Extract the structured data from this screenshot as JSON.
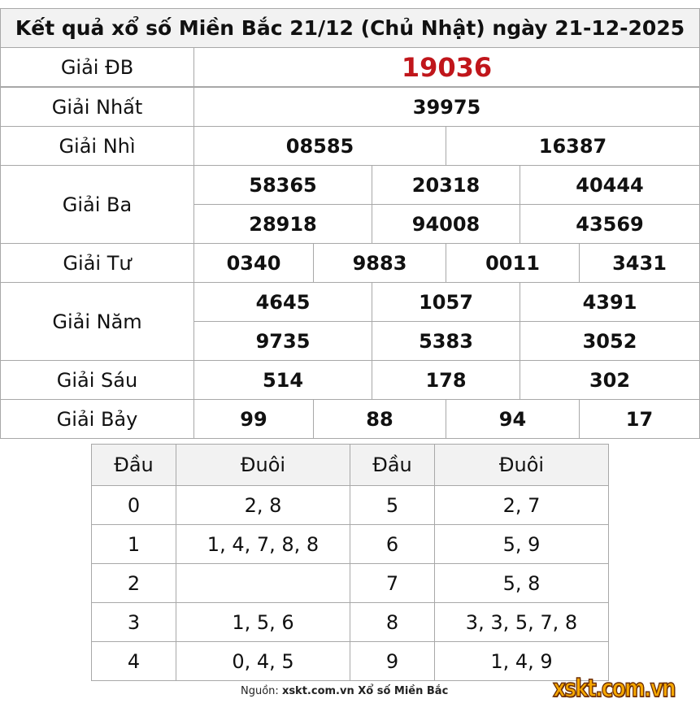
{
  "title": "Kết quả xổ số Miền Bắc 21/12 (Chủ Nhật) ngày 21-12-2025",
  "prizes": {
    "db": {
      "label": "Giải ĐB",
      "numbers": [
        "19036"
      ]
    },
    "nhat": {
      "label": "Giải Nhất",
      "numbers": [
        "39975"
      ]
    },
    "nhi": {
      "label": "Giải Nhì",
      "numbers": [
        "08585",
        "16387"
      ]
    },
    "ba": {
      "label": "Giải Ba",
      "numbers": [
        "58365",
        "20318",
        "40444",
        "28918",
        "94008",
        "43569"
      ]
    },
    "tu": {
      "label": "Giải Tư",
      "numbers": [
        "0340",
        "9883",
        "0011",
        "3431"
      ]
    },
    "nam": {
      "label": "Giải Năm",
      "numbers": [
        "4645",
        "1057",
        "4391",
        "9735",
        "5383",
        "3052"
      ]
    },
    "sau": {
      "label": "Giải Sáu",
      "numbers": [
        "514",
        "178",
        "302"
      ]
    },
    "bay": {
      "label": "Giải Bảy",
      "numbers": [
        "99",
        "88",
        "94",
        "17"
      ]
    }
  },
  "loto": {
    "headers": [
      "Đầu",
      "Đuôi",
      "Đầu",
      "Đuôi"
    ],
    "rows": [
      [
        "0",
        "2, 8",
        "5",
        "2, 7"
      ],
      [
        "1",
        "1, 4, 7, 8, 8",
        "6",
        "5, 9"
      ],
      [
        "2",
        "",
        "7",
        "5, 8"
      ],
      [
        "3",
        "1, 5, 6",
        "8",
        "3, 3, 5, 7, 8"
      ],
      [
        "4",
        "0, 4, 5",
        "9",
        "1, 4, 9"
      ]
    ]
  },
  "footer": {
    "prefix": "Nguồn:",
    "source": "xskt.com.vn Xổ số Miền Bắc"
  },
  "logo_text": "xskt.com.vn",
  "colors": {
    "special_prize": "#c0161b",
    "header_bg": "#f2f2f2",
    "logo": "#f6a800"
  }
}
